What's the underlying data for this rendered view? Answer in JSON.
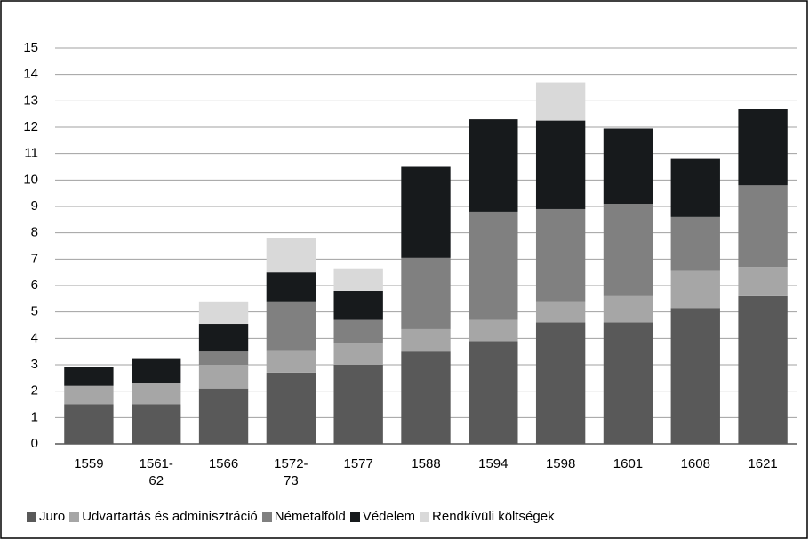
{
  "chart_data": {
    "type": "stacked_bar",
    "categories": [
      "1559",
      "1561-62",
      "1566",
      "1572-73",
      "1577",
      "1588",
      "1594",
      "1598",
      "1601",
      "1608",
      "1621"
    ],
    "series": [
      {
        "name": "Juro",
        "color": "#595959",
        "values": [
          1.5,
          1.5,
          2.1,
          2.7,
          3.0,
          3.5,
          3.9,
          4.6,
          4.6,
          5.15,
          5.6
        ]
      },
      {
        "name": "Udvartartás és adminisztráció",
        "color": "#a6a6a6",
        "values": [
          0.7,
          0.8,
          0.9,
          0.85,
          0.8,
          0.85,
          0.8,
          0.8,
          1.0,
          1.4,
          1.1
        ]
      },
      {
        "name": "Németalföld",
        "color": "#808080",
        "values": [
          0,
          0,
          0.5,
          1.85,
          0.9,
          2.7,
          4.1,
          3.5,
          3.5,
          2.05,
          3.1
        ]
      },
      {
        "name": "Védelem",
        "color": "#171a1c",
        "values": [
          0.7,
          0.95,
          1.05,
          1.1,
          1.1,
          3.45,
          3.5,
          3.35,
          2.85,
          2.2,
          2.9
        ]
      },
      {
        "name": "Rendkívüli költségek",
        "color": "#d9d9d9",
        "values": [
          0,
          0,
          0.85,
          1.3,
          0.85,
          0,
          0,
          1.45,
          0,
          0,
          0
        ]
      }
    ],
    "ylim": [
      0,
      15
    ],
    "yticks": [
      0,
      1,
      2,
      3,
      4,
      5,
      6,
      7,
      8,
      9,
      10,
      11,
      12,
      13,
      14,
      15
    ],
    "grid": true
  }
}
